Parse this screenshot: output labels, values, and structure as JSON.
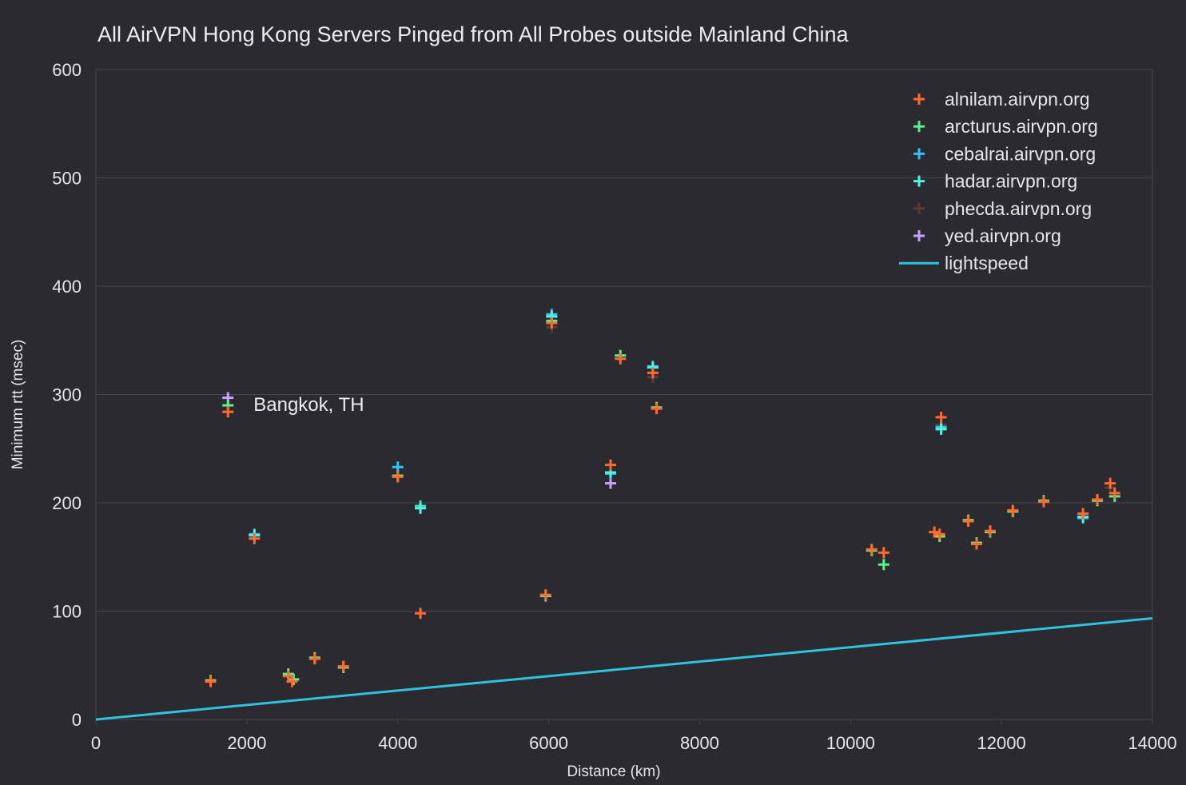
{
  "chart_data": {
    "type": "scatter",
    "title": "All AirVPN Hong Kong Servers Pinged from All Probes outside Mainland China",
    "xlabel": "Distance (km)",
    "ylabel": "Minimum rtt (msec)",
    "xlim": [
      0,
      14000
    ],
    "ylim": [
      0,
      600
    ],
    "xticks": [
      "0",
      "2000",
      "4000",
      "6000",
      "8000",
      "10000",
      "12000",
      "14000"
    ],
    "yticks": [
      "0",
      "100",
      "200",
      "300",
      "400",
      "500",
      "600"
    ],
    "grid": true,
    "legend_position": "top-right",
    "annotation": {
      "text": "Bangkok, TH",
      "x": 1750,
      "y": 290
    },
    "series": [
      {
        "name": "alnilam.airvpn.org",
        "color": "#ff6a2e",
        "marker": "plus",
        "points": [
          [
            1520,
            35
          ],
          [
            1750,
            284
          ],
          [
            2100,
            167
          ],
          [
            2550,
            40
          ],
          [
            2600,
            35
          ],
          [
            2900,
            56
          ],
          [
            3280,
            49
          ],
          [
            4000,
            224
          ],
          [
            4300,
            98
          ],
          [
            5960,
            115
          ],
          [
            6040,
            366
          ],
          [
            6950,
            333
          ],
          [
            6820,
            235
          ],
          [
            7380,
            320
          ],
          [
            7430,
            287
          ],
          [
            10280,
            157
          ],
          [
            10440,
            154
          ],
          [
            11110,
            173
          ],
          [
            11180,
            171
          ],
          [
            11200,
            279
          ],
          [
            11560,
            183
          ],
          [
            11670,
            162
          ],
          [
            11850,
            174
          ],
          [
            12150,
            193
          ],
          [
            12560,
            201
          ],
          [
            13080,
            190
          ],
          [
            13270,
            203
          ],
          [
            13440,
            218
          ],
          [
            13500,
            209
          ]
        ]
      },
      {
        "name": "arcturus.airvpn.org",
        "color": "#5cf08a",
        "marker": "plus",
        "points": [
          [
            1520,
            36
          ],
          [
            1750,
            290
          ],
          [
            2550,
            42
          ],
          [
            2620,
            37
          ],
          [
            2900,
            57
          ],
          [
            3280,
            48
          ],
          [
            4000,
            225
          ],
          [
            4300,
            197
          ],
          [
            5960,
            114
          ],
          [
            6040,
            368
          ],
          [
            6950,
            336
          ],
          [
            7430,
            288
          ],
          [
            10280,
            156
          ],
          [
            10440,
            143
          ],
          [
            11180,
            169
          ],
          [
            11560,
            184
          ],
          [
            11670,
            163
          ],
          [
            11850,
            173
          ],
          [
            12150,
            192
          ],
          [
            12560,
            202
          ],
          [
            13270,
            202
          ],
          [
            13500,
            206
          ]
        ]
      },
      {
        "name": "cebalrai.airvpn.org",
        "color": "#2ec4ee",
        "marker": "plus",
        "points": [
          [
            2100,
            171
          ],
          [
            4000,
            233
          ],
          [
            4300,
            196
          ],
          [
            6040,
            374
          ],
          [
            6820,
            227
          ],
          [
            7380,
            326
          ],
          [
            11200,
            270
          ],
          [
            13080,
            186
          ]
        ]
      },
      {
        "name": "hadar.airvpn.org",
        "color": "#4ff5e2",
        "marker": "plus",
        "points": [
          [
            2100,
            170
          ],
          [
            4300,
            195
          ],
          [
            6040,
            372
          ],
          [
            6820,
            228
          ],
          [
            7380,
            325
          ],
          [
            11200,
            268
          ],
          [
            13080,
            187
          ]
        ]
      },
      {
        "name": "phecda.airvpn.org",
        "color": "#5a3b36",
        "marker": "plus",
        "points": [
          [
            6040,
            362
          ],
          [
            7380,
            316
          ],
          [
            11200,
            272
          ],
          [
            13440,
            214
          ]
        ]
      },
      {
        "name": "yed.airvpn.org",
        "color": "#c9a0ff",
        "marker": "plus",
        "points": [
          [
            1750,
            297
          ],
          [
            6820,
            218
          ]
        ]
      },
      {
        "name": "lightspeed",
        "color": "#2ec4dc",
        "marker": "line",
        "points": [
          [
            0,
            0
          ],
          [
            14000,
            93.4
          ]
        ]
      }
    ]
  }
}
